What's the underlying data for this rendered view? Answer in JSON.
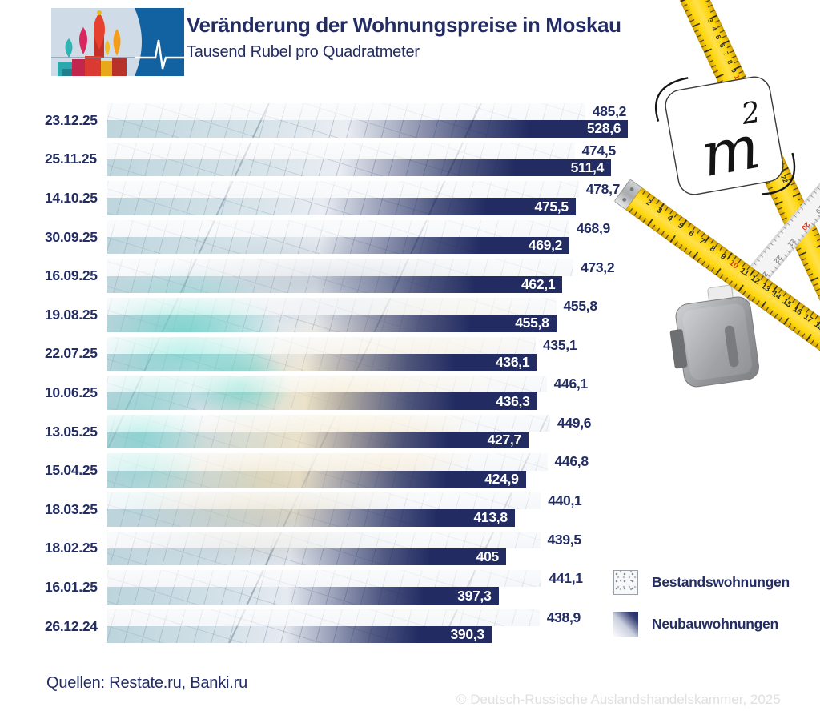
{
  "header": {
    "title": "Veränderung der Wohnungspreise in Moskau",
    "subtitle": "Tausend Rubel pro Quadratmeter"
  },
  "chart_data": {
    "type": "bar",
    "orientation": "horizontal",
    "title": "Veränderung der Wohnungspreise in Moskau",
    "subtitle_unit": "Tausend Rubel pro Quadratmeter",
    "categories": [
      "23.12.25",
      "25.11.25",
      "14.10.25",
      "30.09.25",
      "16.09.25",
      "19.08.25",
      "22.07.25",
      "10.06.25",
      "13.05.25",
      "15.04.25",
      "18.03.25",
      "18.02.25",
      "16.01.25",
      "26.12.24"
    ],
    "series": [
      {
        "name": "Bestandswohnungen",
        "values": [
          485.2,
          474.5,
          478.7,
          468.9,
          473.2,
          455.8,
          435.1,
          446.1,
          449.6,
          446.8,
          440.1,
          439.5,
          441.1,
          438.9
        ],
        "labels": [
          "485,2",
          "474,5",
          "478,7",
          "468,9",
          "473,2",
          "455,8",
          "435,1",
          "446,1",
          "449,6",
          "446,8",
          "440,1",
          "439,5",
          "441,1",
          "438,9"
        ],
        "style": "blueprint-texture"
      },
      {
        "name": "Neubauwohnungen",
        "values": [
          528.6,
          511.4,
          475.5,
          469.2,
          462.1,
          455.8,
          436.1,
          436.3,
          427.7,
          424.9,
          413.8,
          405,
          397.3,
          390.3
        ],
        "labels": [
          "528,6",
          "511,4",
          "475,5",
          "469,2",
          "462,1",
          "455,8",
          "436,1",
          "436,3",
          "427,7",
          "424,9",
          "413,8",
          "405",
          "397,3",
          "390,3"
        ],
        "style": "navy-gradient"
      }
    ],
    "xlim": [
      0,
      530
    ],
    "grid": false,
    "legend_position": "bottom-right",
    "value_labels": {
      "bestand": "outside-right, navy",
      "neubau": "inside-right, white"
    }
  },
  "legend": {
    "items": [
      {
        "label": "Bestandswohnungen",
        "swatch": "speckled-light"
      },
      {
        "label": "Neubauwohnungen",
        "swatch": "navy-gradient"
      }
    ]
  },
  "footer": {
    "sources": "Quellen: Restate.ru, Banki.ru",
    "copyright": "© Deutsch-Russische Auslandshandelskammer, 2025"
  },
  "decoration": {
    "m2_card": {
      "letter": "m",
      "superscript": "2"
    },
    "ruler1_numbers": [
      "3",
      "4",
      "5",
      "6",
      "7",
      "8",
      "9",
      "10",
      "11",
      "12",
      "18",
      "19",
      "20",
      "21",
      "22"
    ],
    "ruler2_numbers": [
      "2",
      "3",
      "4",
      "5",
      "6",
      "7",
      "8",
      "9",
      "10",
      "11",
      "12",
      "13",
      "14",
      "15",
      "16",
      "17",
      "18"
    ],
    "tape_numbers": [
      "19",
      "20",
      "21",
      "22",
      "23",
      "24",
      "25",
      "26"
    ],
    "colors": {
      "navy": "#232d63",
      "ruler_yellow": "#ffd60a",
      "red_mark": "#d6391e",
      "teal": "#60e0cd",
      "beige": "#f2e2ba"
    }
  }
}
